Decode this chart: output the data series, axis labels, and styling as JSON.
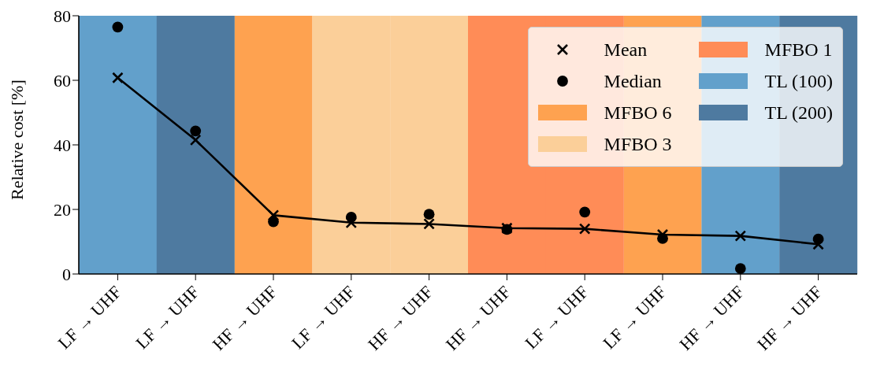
{
  "chart_data": {
    "type": "line",
    "ylabel": "Relative cost [%]",
    "categories": [
      "LF → UHF",
      "LF → UHF",
      "HF → UHF",
      "LF → UHF",
      "HF → UHF",
      "HF → UHF",
      "LF → UHF",
      "LF → UHF",
      "HF → UHF",
      "HF → UHF"
    ],
    "ylim": [
      0,
      80
    ],
    "yticks": [
      0,
      20,
      40,
      60,
      80
    ],
    "stacked": true,
    "series": [
      {
        "name": "Mean",
        "marker": "cross",
        "color": "#000000",
        "values": [
          60.8,
          41.5,
          18.2,
          15.9,
          15.5,
          14.2,
          14.0,
          12.2,
          11.8,
          9.2
        ]
      },
      {
        "name": "Median",
        "type": "scatter",
        "marker": "circle",
        "color": "#000000",
        "values": [
          76.5,
          44.3,
          16.2,
          17.6,
          18.5,
          13.8,
          19.2,
          11.0,
          1.7,
          10.8
        ]
      },
      {
        "name": "MFBO 6",
        "type": "bar",
        "color": "#fea250",
        "values": [
          null,
          null,
          80,
          null,
          null,
          null,
          null,
          80,
          null,
          null
        ]
      },
      {
        "name": "MFBO 3",
        "type": "bar",
        "color": "#fbcf99",
        "values": [
          null,
          null,
          null,
          80,
          80,
          null,
          null,
          null,
          null,
          null
        ]
      },
      {
        "name": "MFBO 1",
        "type": "bar",
        "color": "#ff8c57",
        "values": [
          null,
          null,
          null,
          null,
          null,
          80,
          80,
          null,
          null,
          null
        ]
      },
      {
        "name": "TL (100)",
        "type": "bar",
        "color": "#62a0cb",
        "values": [
          80,
          null,
          null,
          null,
          null,
          null,
          null,
          null,
          80,
          null
        ]
      },
      {
        "name": "TL (200)",
        "type": "bar",
        "color": "#4e7aa0",
        "values": [
          null,
          80,
          null,
          null,
          null,
          null,
          null,
          null,
          null,
          80
        ]
      }
    ],
    "grid": false,
    "legend": "top right"
  }
}
